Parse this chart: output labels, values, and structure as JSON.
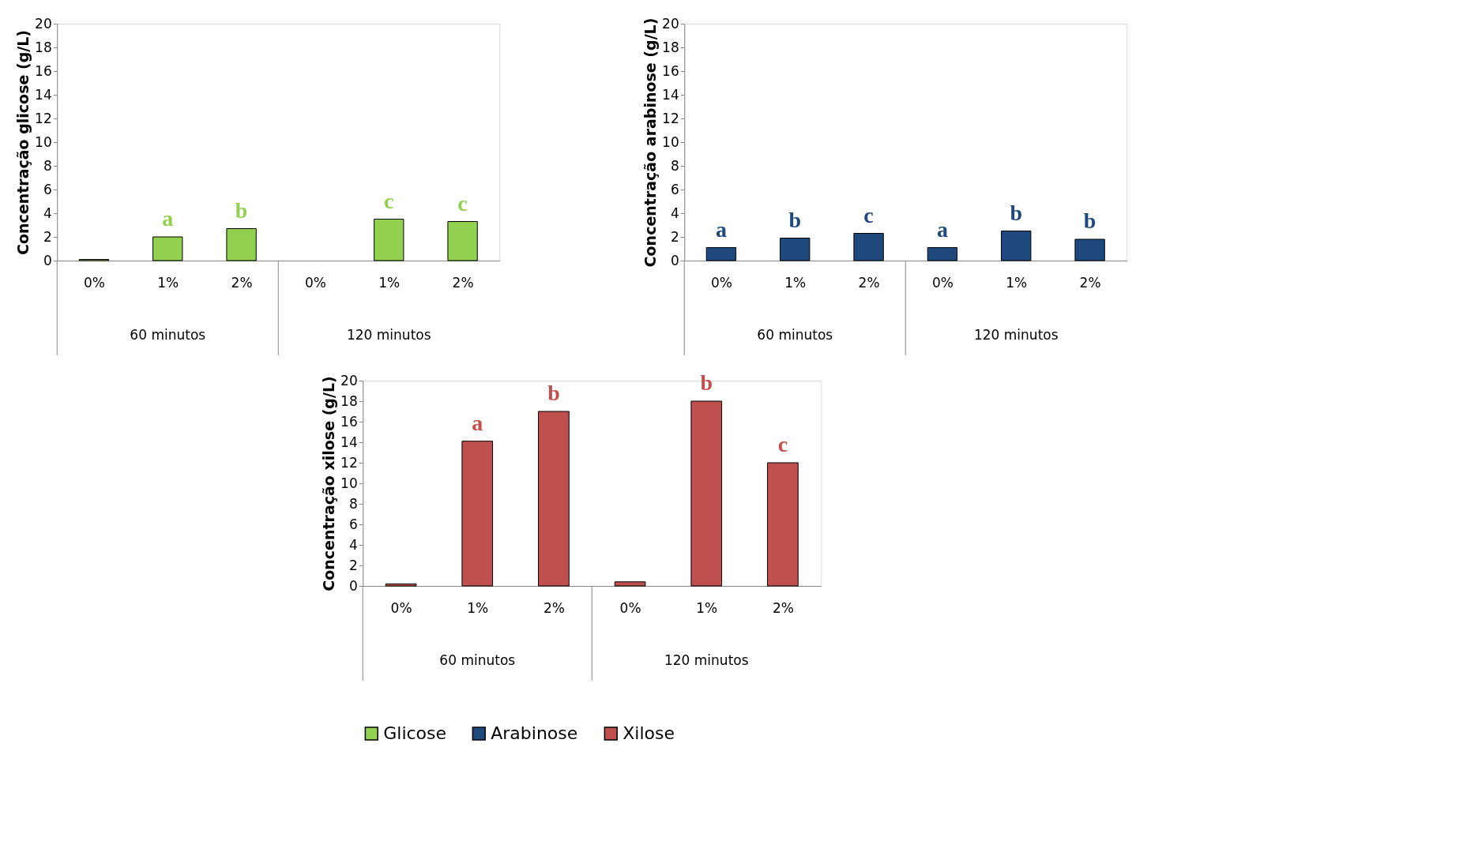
{
  "chart_data": [
    {
      "type": "bar",
      "ylabel": "Concentração glicose (g/L)",
      "categories": [
        "0%",
        "1%",
        "2%",
        "0%",
        "1%",
        "2%"
      ],
      "series": [
        {
          "name": "Glicose",
          "color": "#92d050",
          "values": [
            0.1,
            2.0,
            2.7,
            0,
            3.5,
            3.3
          ],
          "value_labels": [
            null,
            "a",
            "b",
            null,
            "c",
            "c"
          ]
        }
      ],
      "annotations": [
        "60 minutos",
        "120 minutos"
      ],
      "ylim": [
        0,
        20
      ],
      "yticks": [
        0,
        2,
        4,
        6,
        8,
        10,
        12,
        14,
        16,
        18,
        20
      ],
      "grid": false
    },
    {
      "type": "bar",
      "ylabel": "Concentração arabinose (g/L)",
      "categories": [
        "0%",
        "1%",
        "2%",
        "0%",
        "1%",
        "2%"
      ],
      "series": [
        {
          "name": "Arabinose",
          "color": "#1f497d",
          "values": [
            1.1,
            1.9,
            2.3,
            1.1,
            2.5,
            1.8
          ],
          "value_labels": [
            "a",
            "b",
            "c",
            "a",
            "b",
            "b"
          ]
        }
      ],
      "annotations": [
        "60 minutos",
        "120 minutos"
      ],
      "ylim": [
        0,
        20
      ],
      "yticks": [
        0,
        2,
        4,
        6,
        8,
        10,
        12,
        14,
        16,
        18,
        20
      ],
      "grid": false
    },
    {
      "type": "bar",
      "ylabel": "Concentração xilose (g/L)",
      "categories": [
        "0%",
        "1%",
        "2%",
        "0%",
        "1%",
        "2%"
      ],
      "series": [
        {
          "name": "Xilose",
          "color": "#c0504d",
          "values": [
            0.2,
            14.1,
            17.0,
            0.4,
            18.0,
            12.0
          ],
          "value_labels": [
            null,
            "a",
            "b",
            null,
            "b",
            "c"
          ]
        }
      ],
      "annotations": [
        "60 minutos",
        "120 minutos"
      ],
      "ylim": [
        0,
        20
      ],
      "yticks": [
        0,
        2,
        4,
        6,
        8,
        10,
        12,
        14,
        16,
        18,
        20
      ],
      "grid": false,
      "legend": "bottom"
    }
  ]
}
